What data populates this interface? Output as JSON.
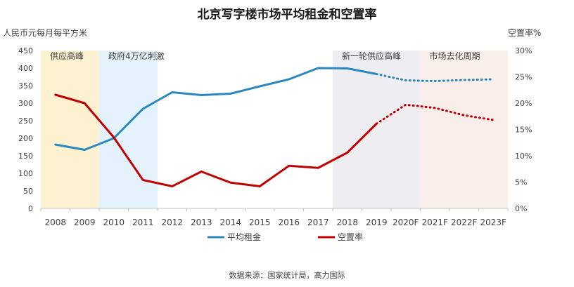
{
  "chart_data": {
    "type": "line",
    "title": "北京写字楼市场平均租金和空置率",
    "ylabel_left": "人民币元每月每平方米",
    "ylabel_right": "空置率%",
    "source": "数据来源：国家统计局，高力国际",
    "categories": [
      "2008",
      "2009",
      "2010",
      "2011",
      "2012",
      "2013",
      "2014",
      "2015",
      "2016",
      "2017",
      "2018",
      "2019",
      "2020F",
      "2021F",
      "2022F",
      "2023F"
    ],
    "ylim_left": [
      0,
      450
    ],
    "yticks_left": [
      0,
      50,
      100,
      150,
      200,
      250,
      300,
      350,
      400,
      450
    ],
    "ylim_right": [
      0,
      30
    ],
    "yticks_right": [
      "0%",
      "5%",
      "10%",
      "15%",
      "20%",
      "25%",
      "30%"
    ],
    "series": [
      {
        "name": "平均租金",
        "axis": "left",
        "color": "#2a87c0",
        "values": [
          182,
          167,
          200,
          284,
          331,
          323,
          327,
          348,
          368,
          400,
          399,
          383,
          365,
          363,
          366,
          368
        ],
        "forecast_from_index": 11
      },
      {
        "name": "空置率",
        "axis": "right",
        "color": "#c00000",
        "values": [
          21.6,
          20.0,
          13.5,
          5.4,
          4.2,
          7.0,
          4.9,
          4.2,
          8.1,
          7.7,
          10.6,
          16.1,
          19.7,
          19.1,
          17.7,
          16.8
        ],
        "forecast_from_index": 11
      }
    ],
    "bands": [
      {
        "label": "供应高峰",
        "from": 0,
        "to": 2,
        "color": "#fdf1d2"
      },
      {
        "label": "政府4万亿刺激",
        "from": 2,
        "to": 4,
        "color": "#e4f3fb"
      },
      {
        "label": "新一轮供应高峰",
        "from": 10,
        "to": 13,
        "color": "#eeedf2"
      },
      {
        "label": "市场去化周期",
        "from": 13,
        "to": 16,
        "color": "#faeeea"
      }
    ],
    "legend": [
      "平均租金",
      "空置率"
    ]
  }
}
